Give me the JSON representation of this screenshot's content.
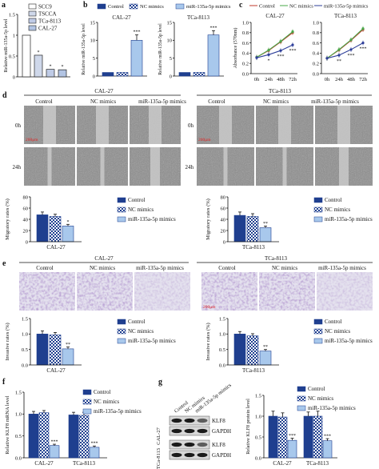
{
  "colors": {
    "dark": "#1f3f8f",
    "mid": "#4f7fce",
    "light": "#a8c8ec",
    "bars_a": [
      "#ffffff",
      "#cfd8ea",
      "#bfcbe6",
      "#b2c4e3"
    ],
    "green": "#4aa84a",
    "red": "#c0392b",
    "blue": "#2e3f9a"
  },
  "legend_groups": [
    "Control",
    "NC mimics",
    "miR-135a-5p mimics"
  ],
  "panel_labels": {
    "a": "a",
    "b": "b",
    "c": "c",
    "d": "d",
    "e": "e",
    "f": "f",
    "g": "g"
  },
  "cells": {
    "cal27": "CAL-27",
    "tca": "TCa-8113"
  },
  "axis_texts": {
    "rel_level": "Relative miR-135a-5p level",
    "absorbance": "Absorbance (570nm)",
    "migratory": "Migratory rates (%)",
    "invasive": "Invasive rates (%)",
    "klf8_mrna": "Relative KLF8 mRNA level",
    "klf8_protein": "Relative KLF8 protein level"
  },
  "time_labels": [
    "0h",
    "24h",
    "48h",
    "72h"
  ],
  "scratch_rows": [
    "0h",
    "24h"
  ],
  "scale_bar": "200μm",
  "blot": {
    "lanes": [
      "Control",
      "NC mimics",
      "miR-135a-5p mimics"
    ],
    "rows": [
      "KLF8",
      "GAPDH"
    ]
  },
  "sig": {
    "three": "***",
    "two": "**",
    "one": "*"
  },
  "chart_data": [
    {
      "panel": "a",
      "type": "bar",
      "categories": [
        "SCC9",
        "TSCCA",
        "TCa-8113",
        "CAL-27"
      ],
      "values": [
        1.0,
        0.52,
        0.18,
        0.17
      ],
      "ylabel": "Relative miR-135a-5p level",
      "ylim": [
        0,
        1.5
      ],
      "yticks": [
        "0",
        "0.5",
        "1",
        "1.5"
      ],
      "legend": [
        "SCC9",
        "TSCCA",
        "TCa-8113",
        "CAL-27"
      ],
      "annotations": [
        "*",
        "*",
        "*"
      ]
    },
    {
      "panel": "b",
      "type": "bar",
      "panels": [
        {
          "title": "CAL-27",
          "values": [
            1.0,
            1.0,
            10.0
          ],
          "errors": [
            0,
            0,
            1.5
          ],
          "ylim": [
            0,
            15
          ],
          "yticks": [
            "0",
            "5",
            "10",
            "15"
          ],
          "annotation": "***"
        },
        {
          "title": "TCa-8113",
          "values": [
            1.0,
            1.0,
            11.5
          ],
          "errors": [
            0,
            0,
            1.2
          ],
          "ylim": [
            0,
            15
          ],
          "yticks": [
            "0",
            "5",
            "10",
            "15"
          ],
          "annotation": "***"
        }
      ],
      "series": [
        {
          "name": "Control"
        },
        {
          "name": "NC mimics"
        },
        {
          "name": "miR-135a-5p mimics"
        }
      ],
      "ylabel": "Relative miR-135a-5p level"
    },
    {
      "panel": "c",
      "type": "line",
      "x": [
        "0h",
        "24h",
        "48h",
        "72h"
      ],
      "ylabel": "Absorbance (570nm)",
      "panels": [
        {
          "title": "CAL-27",
          "ylim": [
            0,
            1.0
          ],
          "yticks": [
            "0.0",
            "0.2",
            "0.4",
            "0.6",
            "0.8",
            "1.0"
          ],
          "series": [
            {
              "name": "Control",
              "values": [
                0.32,
                0.45,
                0.62,
                0.8
              ]
            },
            {
              "name": "NC mimics",
              "values": [
                0.32,
                0.46,
                0.63,
                0.82
              ]
            },
            {
              "name": "miR-135a-5p mimics",
              "values": [
                0.31,
                0.37,
                0.45,
                0.56
              ]
            }
          ],
          "annotations": [
            "*",
            "***",
            "***"
          ]
        },
        {
          "title": "TCa-8113",
          "ylim": [
            0,
            1.0
          ],
          "yticks": [
            "0.0",
            "0.2",
            "0.4",
            "0.6",
            "0.8",
            "1.0"
          ],
          "series": [
            {
              "name": "Control",
              "values": [
                0.3,
                0.46,
                0.65,
                0.86
              ]
            },
            {
              "name": "NC mimics",
              "values": [
                0.3,
                0.47,
                0.66,
                0.88
              ]
            },
            {
              "name": "miR-135a-5p mimics",
              "values": [
                0.3,
                0.36,
                0.47,
                0.6
              ]
            }
          ],
          "annotations": [
            "**",
            "***",
            "***"
          ]
        }
      ]
    },
    {
      "panel": "d",
      "type": "bar",
      "categories": [
        "CAL-27",
        "TCa-8113"
      ],
      "series": [
        {
          "name": "Control",
          "values": [
            48,
            47
          ],
          "errors": [
            5,
            6
          ]
        },
        {
          "name": "NC mimics",
          "values": [
            45,
            45
          ],
          "errors": [
            4,
            5
          ]
        },
        {
          "name": "miR-135a-5p mimics",
          "values": [
            28,
            25
          ],
          "errors": [
            3,
            3
          ]
        }
      ],
      "ylabel": "Migratory rates (%)",
      "ylim": [
        0,
        80
      ],
      "yticks": [
        "0",
        "20",
        "40",
        "60",
        "80"
      ],
      "annotations": [
        "*",
        "**"
      ]
    },
    {
      "panel": "e",
      "type": "bar",
      "categories": [
        "CAL-27",
        "TCa-8113"
      ],
      "series": [
        {
          "name": "Control",
          "values": [
            1.0,
            1.0
          ],
          "errors": [
            0.1,
            0.08
          ]
        },
        {
          "name": "NC mimics",
          "values": [
            0.97,
            0.94
          ],
          "errors": [
            0.08,
            0.07
          ]
        },
        {
          "name": "miR-135a-5p mimics",
          "values": [
            0.52,
            0.45
          ],
          "errors": [
            0.06,
            0.05
          ]
        }
      ],
      "ylabel": "Invasive rates (%)",
      "ylim": [
        0,
        1.5
      ],
      "yticks": [
        "0.0",
        "0.5",
        "1.0",
        "1.5"
      ],
      "annotations": [
        "**",
        "**"
      ]
    },
    {
      "panel": "f",
      "type": "bar",
      "categories": [
        "CAL-27",
        "TCa-8113"
      ],
      "series": [
        {
          "name": "Control",
          "values": [
            1.0,
            0.98
          ],
          "errors": [
            0.06,
            0.06
          ]
        },
        {
          "name": "NC mimics",
          "values": [
            1.03,
            0.97
          ],
          "errors": [
            0.05,
            0.07
          ]
        },
        {
          "name": "miR-135a-5p mimics",
          "values": [
            0.28,
            0.24
          ],
          "errors": [
            0.03,
            0.03
          ]
        }
      ],
      "ylabel": "Relative KLF8 mRNA level",
      "ylim": [
        0,
        1.5
      ],
      "yticks": [
        "0.0",
        "0.5",
        "1.0",
        "1.5"
      ],
      "annotations": [
        "***",
        "***"
      ]
    },
    {
      "panel": "g",
      "type": "bar",
      "categories": [
        "CAL-27",
        "TCa-8113"
      ],
      "series": [
        {
          "name": "Control",
          "values": [
            1.0,
            1.0
          ],
          "errors": [
            0.12,
            0.1
          ]
        },
        {
          "name": "NC mimics",
          "values": [
            0.98,
            1.0
          ],
          "errors": [
            0.1,
            0.12
          ]
        },
        {
          "name": "miR-135a-5p mimics",
          "values": [
            0.42,
            0.41
          ],
          "errors": [
            0.05,
            0.05
          ]
        }
      ],
      "ylabel": "Relative KLF8 protein level",
      "ylim": [
        0,
        1.5
      ],
      "yticks": [
        "0.0",
        "0.5",
        "1.0",
        "1.5"
      ],
      "annotations": [
        "***",
        "***"
      ]
    }
  ]
}
